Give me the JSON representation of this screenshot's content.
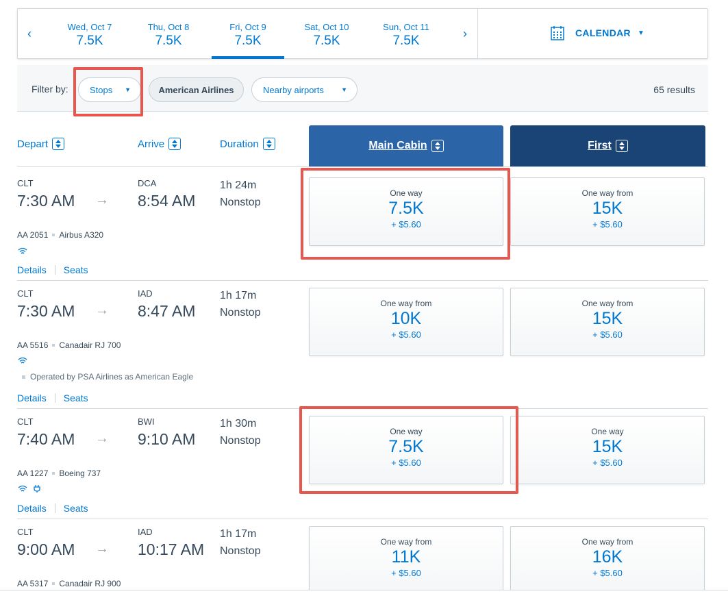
{
  "dates": [
    {
      "label": "Wed, Oct 7",
      "price": "7.5K",
      "selected": false
    },
    {
      "label": "Thu, Oct 8",
      "price": "7.5K",
      "selected": false
    },
    {
      "label": "Fri, Oct 9",
      "price": "7.5K",
      "selected": true
    },
    {
      "label": "Sat, Oct 10",
      "price": "7.5K",
      "selected": false
    },
    {
      "label": "Sun, Oct 11",
      "price": "7.5K",
      "selected": false
    }
  ],
  "nav": {
    "prev": "‹",
    "next": "›"
  },
  "calendar": {
    "label": "CALENDAR",
    "caret": "▼"
  },
  "filter": {
    "label": "Filter by:",
    "stops": "Stops",
    "airline": "American Airlines",
    "nearby": "Nearby airports",
    "caret": "▼",
    "results": "65 results"
  },
  "columns": {
    "depart": "Depart",
    "arrive": "Arrive",
    "duration": "Duration",
    "main_cabin": "Main Cabin",
    "first": "First"
  },
  "arrow": "→",
  "links": {
    "details": "Details",
    "seats": "Seats"
  },
  "flights": [
    {
      "dep_code": "CLT",
      "dep_time": "7:30 AM",
      "arr_code": "DCA",
      "arr_time": "8:54 AM",
      "duration": "1h 24m",
      "stops": "Nonstop",
      "flight": "AA 2051",
      "aircraft": "Airbus A320",
      "amenities": "wifi",
      "main": {
        "label": "One way",
        "price": "7.5K",
        "fee": "+ $5.60"
      },
      "first": {
        "label": "One way from",
        "price": "15K",
        "fee": "+ $5.60"
      }
    },
    {
      "dep_code": "CLT",
      "dep_time": "7:30 AM",
      "arr_code": "IAD",
      "arr_time": "8:47 AM",
      "duration": "1h 17m",
      "stops": "Nonstop",
      "flight": "AA 5516",
      "aircraft": "Canadair RJ 700",
      "amenities": "wifi",
      "operated": "Operated by PSA Airlines as American Eagle",
      "main": {
        "label": "One way from",
        "price": "10K",
        "fee": "+ $5.60"
      },
      "first": {
        "label": "One way from",
        "price": "15K",
        "fee": "+ $5.60"
      }
    },
    {
      "dep_code": "CLT",
      "dep_time": "7:40 AM",
      "arr_code": "BWI",
      "arr_time": "9:10 AM",
      "duration": "1h 30m",
      "stops": "Nonstop",
      "flight": "AA 1227",
      "aircraft": "Boeing 737",
      "amenities": "wifi, power",
      "main": {
        "label": "One way",
        "price": "7.5K",
        "fee": "+ $5.60"
      },
      "first": {
        "label": "One way",
        "price": "15K",
        "fee": "+ $5.60"
      }
    },
    {
      "dep_code": "CLT",
      "dep_time": "9:00 AM",
      "arr_code": "IAD",
      "arr_time": "10:17 AM",
      "duration": "1h 17m",
      "stops": "Nonstop",
      "flight": "AA 5317",
      "aircraft": "Canadair RJ 900",
      "main": {
        "label": "One way from",
        "price": "11K",
        "fee": "+ $5.60"
      },
      "first": {
        "label": "One way from",
        "price": "16K",
        "fee": "+ $5.60"
      }
    }
  ],
  "colors": {
    "accent": "#0078d2",
    "main_cabin": "#2b64a7",
    "first": "#1a4475",
    "highlight": "#e8574d"
  }
}
